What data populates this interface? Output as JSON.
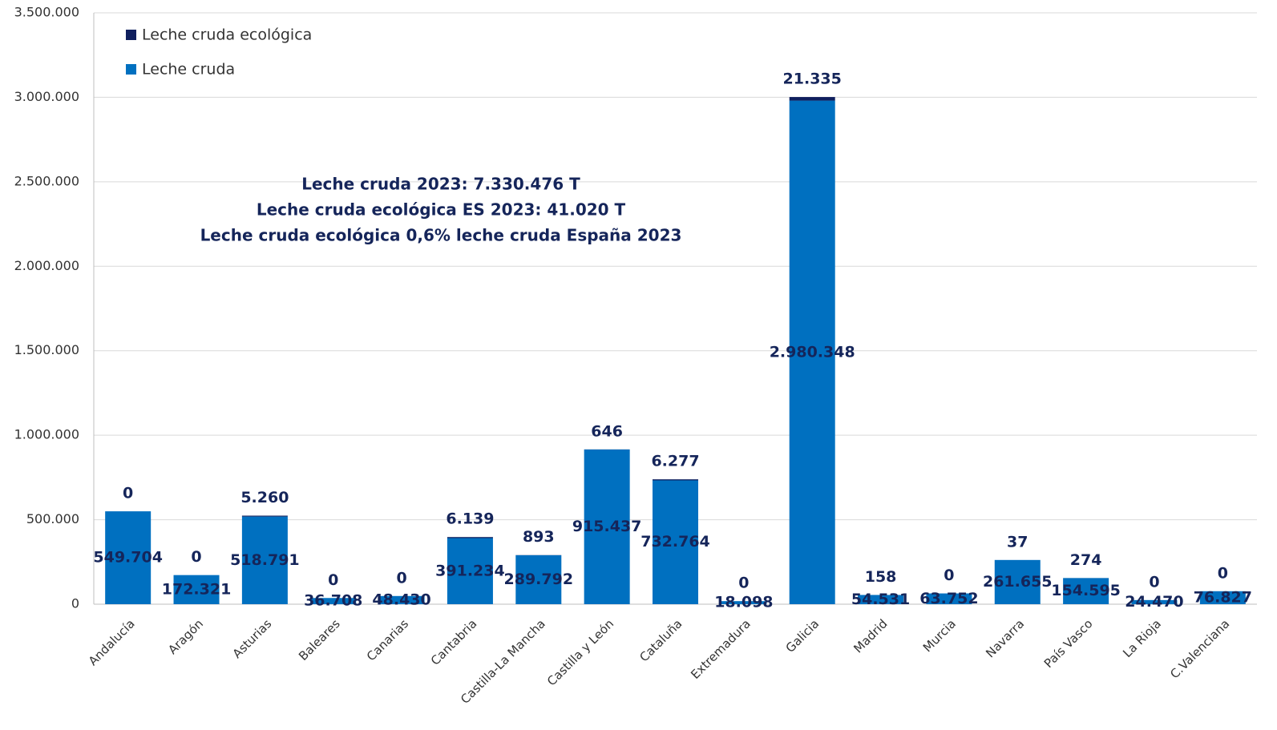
{
  "chart_data": {
    "type": "bar",
    "stacked": true,
    "categories": [
      "Andalucía",
      "Aragón",
      "Asturias",
      "Baleares",
      "Canarias",
      "Cantabria",
      "Castilla-La Mancha",
      "Castilla y León",
      "Cataluña",
      "Extremadura",
      "Galicia",
      "Madrid",
      "Murcia",
      "Navarra",
      "País Vasco",
      "La Rioja",
      "C.Valenciana"
    ],
    "series": [
      {
        "name": "Leche cruda",
        "color": "#0070c0",
        "values": [
          549704,
          172321,
          518791,
          36708,
          48430,
          391234,
          289792,
          915437,
          732764,
          18098,
          2980348,
          54531,
          63752,
          261655,
          154595,
          24470,
          76827
        ],
        "value_labels": [
          "549.704",
          "172.321",
          "518.791",
          "36.708",
          "48.430",
          "391.234",
          "289.792",
          "915.437",
          "732.764",
          "18.098",
          "2.980.348",
          "54.531",
          "63.752",
          "261.655",
          "154.595",
          "24.470",
          "76.827"
        ]
      },
      {
        "name": "Leche cruda ecológica",
        "color": "#0f1f5e",
        "values": [
          0,
          0,
          5260,
          0,
          0,
          6139,
          893,
          646,
          6277,
          0,
          21335,
          158,
          0,
          37,
          274,
          0,
          0
        ],
        "value_labels": [
          "0",
          "0",
          "5.260",
          "0",
          "0",
          "6.139",
          "893",
          "646",
          "6.277",
          "0",
          "21.335",
          "158",
          "0",
          "37",
          "274",
          "0",
          "0"
        ]
      }
    ],
    "annotations": [
      "Leche cruda 2023: 7.330.476 T",
      "Leche cruda ecológica ES 2023: 41.020 T",
      "Leche cruda ecológica 0,6% leche cruda España 2023"
    ],
    "ylim": [
      0,
      3500000
    ],
    "yticks": [
      0,
      {
        "value": 500000,
        "label": "500.000"
      },
      {
        "value": 1000000,
        "label": "1.000.000"
      },
      {
        "value": 1500000,
        "label": "1.500.000"
      },
      {
        "value": 2000000,
        "label": "2.000.000"
      },
      {
        "value": 2500000,
        "label": "2.500.000"
      },
      {
        "value": 3000000,
        "label": "3.000.000"
      },
      {
        "value": 3500000,
        "label": "3.500.000"
      }
    ],
    "grid": true,
    "legend": "top-left"
  }
}
